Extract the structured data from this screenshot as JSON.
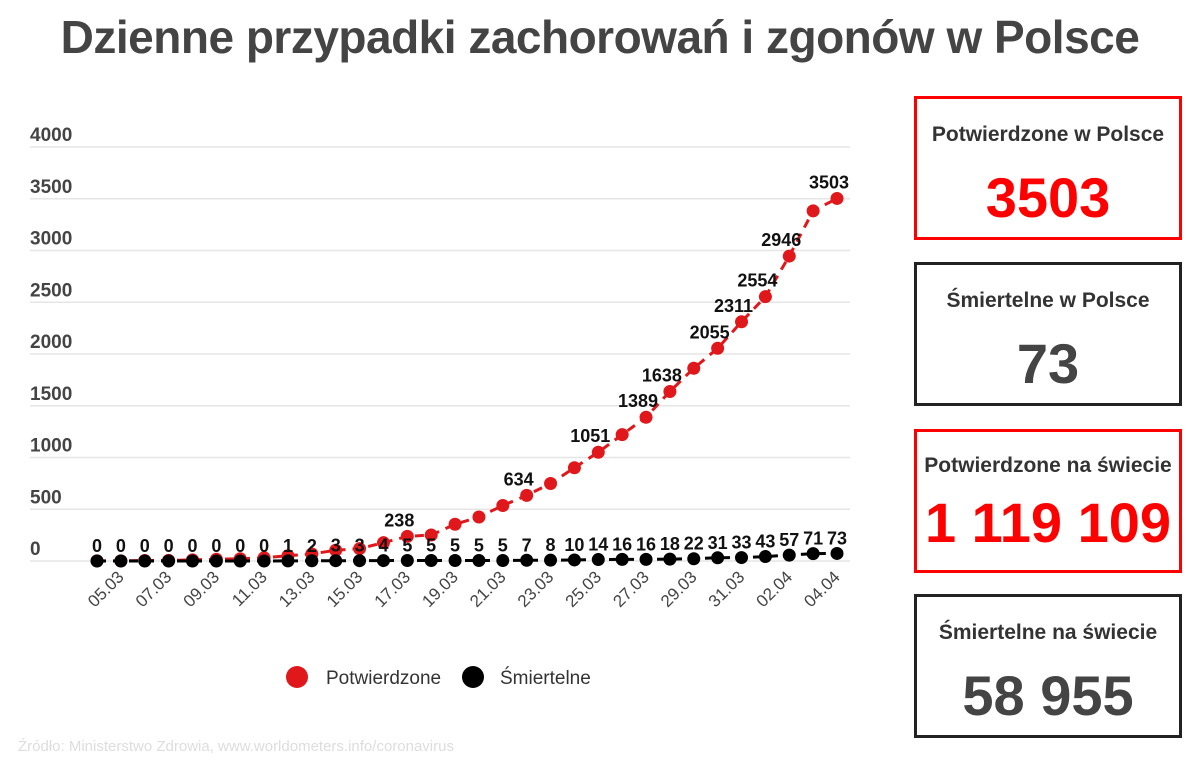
{
  "title": "Dzienne przypadki zachorowań i zgonów w Polsce",
  "chart_data": {
    "type": "line",
    "title": "Dzienne przypadki zachorowań i zgonów w Polsce",
    "x": [
      "04.03",
      "05.03",
      "06.03",
      "07.03",
      "08.03",
      "09.03",
      "10.03",
      "11.03",
      "12.03",
      "13.03",
      "14.03",
      "15.03",
      "16.03",
      "17.03",
      "18.03",
      "19.03",
      "20.03",
      "21.03",
      "22.03",
      "23.03",
      "24.03",
      "25.03",
      "26.03",
      "27.03",
      "28.03",
      "29.03",
      "30.03",
      "31.03",
      "01.04",
      "02.04",
      "03.04",
      "04.04"
    ],
    "x_tick_labels": [
      "05.03",
      "07.03",
      "09.03",
      "11.03",
      "13.03",
      "15.03",
      "17.03",
      "19.03",
      "21.03",
      "23.03",
      "25.03",
      "27.03",
      "29.03",
      "31.03",
      "02.04",
      "04.04"
    ],
    "ylim": [
      0,
      4000
    ],
    "y_ticks": [
      0,
      500,
      1000,
      1500,
      2000,
      2500,
      3000,
      3500,
      4000
    ],
    "grid": true,
    "legend_placement": "bottom",
    "series": [
      {
        "name": "Potwierdzone",
        "color": "#e0181b",
        "values": [
          1,
          1,
          5,
          6,
          11,
          17,
          22,
          31,
          51,
          68,
          104,
          119,
          177,
          238,
          251,
          355,
          425,
          536,
          634,
          749,
          901,
          1051,
          1221,
          1389,
          1638,
          1862,
          2055,
          2311,
          2554,
          2946,
          3383,
          3503
        ],
        "labeled": [
          "17.03",
          "22.03",
          "25.03",
          "27.03",
          "28.03",
          "30.03",
          "31.03",
          "01.04",
          "02.04",
          "04.04"
        ]
      },
      {
        "name": "Śmiertelne",
        "color": "#000000",
        "values": [
          0,
          0,
          0,
          0,
          0,
          0,
          0,
          0,
          1,
          2,
          3,
          3,
          4,
          5,
          5,
          5,
          5,
          5,
          7,
          8,
          10,
          14,
          16,
          16,
          18,
          22,
          31,
          33,
          43,
          57,
          71,
          73
        ]
      }
    ]
  },
  "boxes": [
    {
      "label": "Potwierdzone w Polsce",
      "value": "3503",
      "accent": "#ff0000"
    },
    {
      "label": "Śmiertelne w Polsce",
      "value": "73",
      "accent": "#222222"
    },
    {
      "label": "Potwierdzone na świecie",
      "value": "1 119 109",
      "accent": "#ff0000"
    },
    {
      "label": "Śmiertelne na świecie",
      "value": "58 955",
      "accent": "#222222"
    }
  ],
  "source": "Źródło: Ministerstwo Zdrowia, www.worldometers.info/coronavirus"
}
